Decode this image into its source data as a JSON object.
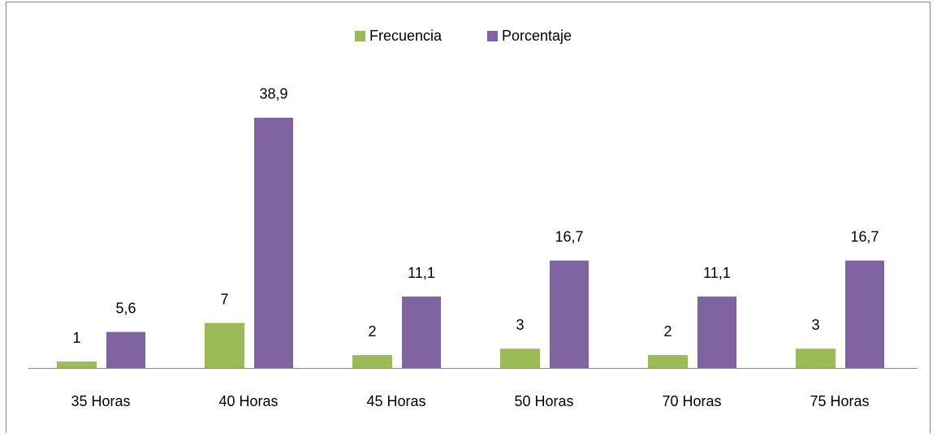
{
  "chart_data": {
    "type": "bar",
    "categories": [
      "35 Horas",
      "40 Horas",
      "45 Horas",
      "50 Horas",
      "70 Horas",
      "75 Horas"
    ],
    "series": [
      {
        "name": "Frecuencia",
        "color": "#9bbb59",
        "values": [
          1,
          7,
          2,
          3,
          2,
          3
        ]
      },
      {
        "name": "Porcentaje",
        "color": "#8064a2",
        "values": [
          5.6,
          38.9,
          11.1,
          16.7,
          11.1,
          16.7
        ],
        "value_labels": [
          "5,6",
          "38,9",
          "11,1",
          "16,7",
          "11,1",
          "16,7"
        ]
      }
    ]
  }
}
